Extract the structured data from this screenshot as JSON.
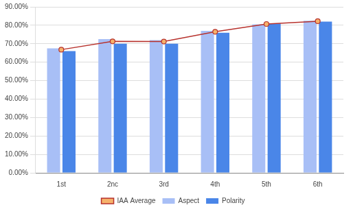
{
  "chart_data": {
    "type": "bar",
    "categories": [
      "1st",
      "2nc",
      "3rd",
      "4th",
      "5th",
      "6th"
    ],
    "series": [
      {
        "name": "Aspect",
        "color": "#a8bff6",
        "values": [
          67.5,
          72.5,
          72,
          77,
          80.5,
          82.5
        ]
      },
      {
        "name": "Polarity",
        "color": "#4a86e8",
        "values": [
          66,
          70,
          70,
          76,
          81,
          82
        ]
      },
      {
        "name": "IAA Average",
        "type": "line",
        "marker": "circle",
        "color": "#b7312c",
        "values": [
          66.8,
          71.3,
          71.2,
          76.5,
          80.7,
          82.2
        ]
      }
    ],
    "ylim": [
      0,
      90
    ],
    "yticks": [
      {
        "value": 0,
        "label": "0.00%"
      },
      {
        "value": 10,
        "label": "10.00%"
      },
      {
        "value": 20,
        "label": "20.00%"
      },
      {
        "value": 30,
        "label": "30.00%"
      },
      {
        "value": 40,
        "label": "40.00%"
      },
      {
        "value": 50,
        "label": "50.00%"
      },
      {
        "value": 60,
        "label": "60.00%"
      },
      {
        "value": 70,
        "label": "70.00%"
      },
      {
        "value": 80,
        "label": "80.00%"
      },
      {
        "value": 90,
        "label": "90.00%"
      }
    ],
    "grid": true,
    "legend": "bottom"
  }
}
